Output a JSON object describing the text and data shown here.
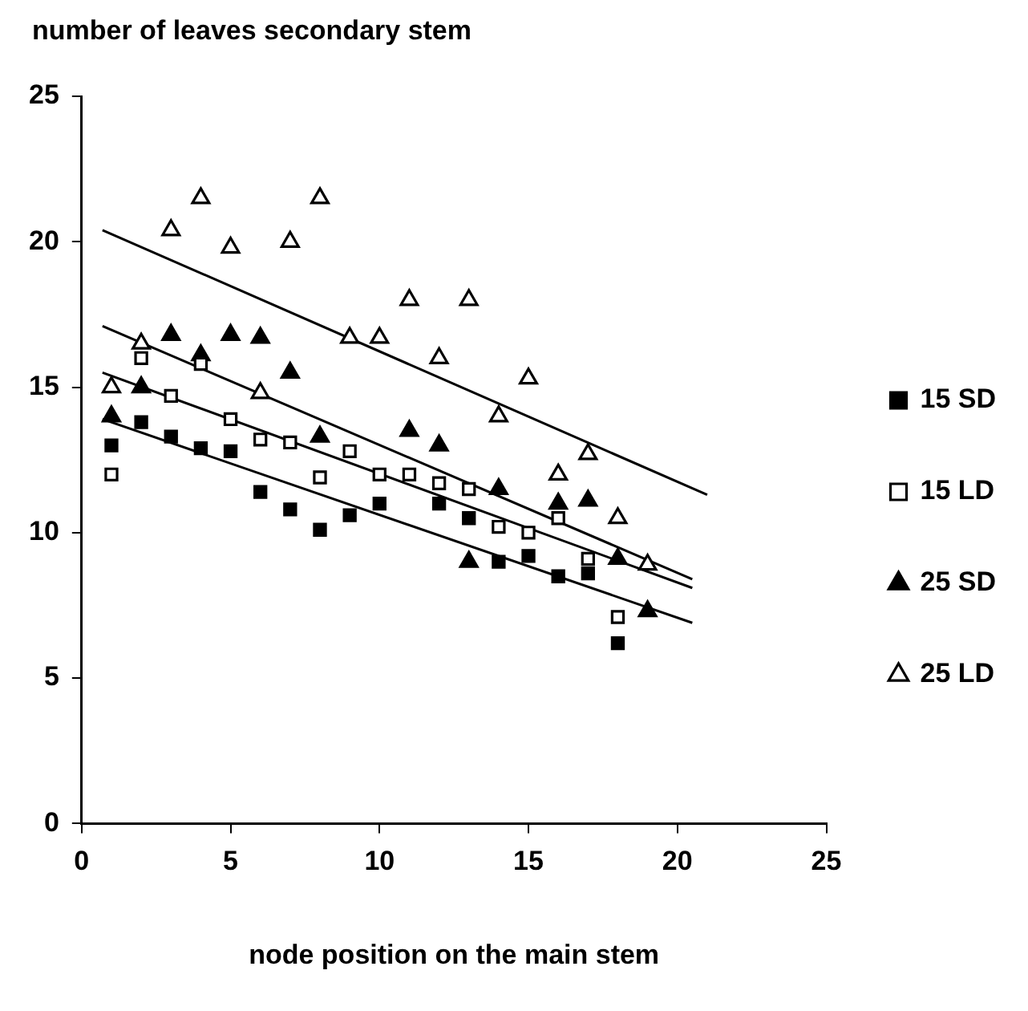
{
  "chart_data": {
    "type": "scatter",
    "xlabel": "node position on the main stem",
    "ylabel": "number of leaves secondary stem",
    "xlim": [
      0,
      25
    ],
    "xticks": [
      0,
      5,
      10,
      15,
      20,
      25
    ],
    "ylim": [
      0,
      25
    ],
    "yticks": [
      0,
      5,
      10,
      15,
      20,
      25
    ],
    "grid": false,
    "legend": "right",
    "series": [
      {
        "name": "15 SD",
        "color": "#000000",
        "marker": "square",
        "x": [
          1,
          2,
          3,
          4,
          5,
          6,
          7,
          8,
          9,
          10,
          12,
          13,
          14,
          15,
          16,
          17,
          18
        ],
        "values": [
          13.0,
          13.8,
          13.3,
          12.9,
          12.8,
          11.4,
          10.8,
          10.1,
          10.6,
          11.0,
          11.0,
          10.5,
          9.0,
          9.2,
          8.5,
          8.6,
          6.2
        ]
      },
      {
        "name": "15 LD",
        "color": "#000000",
        "marker": "square-open",
        "x": [
          1,
          2,
          3,
          4,
          5,
          6,
          7,
          8,
          9,
          10,
          11,
          12,
          13,
          14,
          15,
          16,
          17,
          18
        ],
        "values": [
          12.0,
          16.0,
          14.7,
          15.8,
          13.9,
          13.2,
          13.1,
          11.9,
          12.8,
          12.0,
          12.0,
          11.7,
          11.5,
          10.2,
          10.0,
          10.5,
          9.1,
          7.1
        ]
      },
      {
        "name": "25 SD",
        "color": "#000000",
        "marker": "triangle",
        "x": [
          1,
          2,
          3,
          4,
          5,
          6,
          7,
          8,
          11,
          12,
          13,
          14,
          16,
          17,
          18,
          19
        ],
        "values": [
          14.0,
          15.0,
          16.8,
          16.1,
          16.8,
          16.7,
          15.5,
          13.3,
          13.5,
          13.0,
          9.0,
          11.5,
          11.0,
          11.1,
          9.1,
          7.3
        ]
      },
      {
        "name": "25 LD",
        "color": "#000000",
        "marker": "triangle-open",
        "x": [
          1,
          2,
          3,
          4,
          5,
          6,
          7,
          8,
          9,
          10,
          11,
          12,
          13,
          14,
          15,
          16,
          17,
          18,
          19
        ],
        "values": [
          15.0,
          16.5,
          20.4,
          21.5,
          19.8,
          14.8,
          20.0,
          21.5,
          16.7,
          16.7,
          18.0,
          16.0,
          18.0,
          14.0,
          15.3,
          12.0,
          12.7,
          10.5,
          8.9
        ]
      },
      {
        "type": "line",
        "color": "#000000",
        "marker": "none",
        "line_style": "solid",
        "x": [
          0.7,
          20.5
        ],
        "values": [
          13.9,
          6.9
        ]
      },
      {
        "type": "line",
        "color": "#000000",
        "marker": "none",
        "line_style": "solid",
        "x": [
          0.7,
          20.5
        ],
        "values": [
          15.5,
          8.1
        ]
      },
      {
        "type": "line",
        "color": "#000000",
        "marker": "none",
        "line_style": "solid",
        "x": [
          0.7,
          20.5
        ],
        "values": [
          17.1,
          8.4
        ]
      },
      {
        "type": "line",
        "color": "#000000",
        "marker": "none",
        "line_style": "solid",
        "x": [
          0.7,
          21
        ],
        "values": [
          20.4,
          11.3
        ]
      }
    ]
  }
}
